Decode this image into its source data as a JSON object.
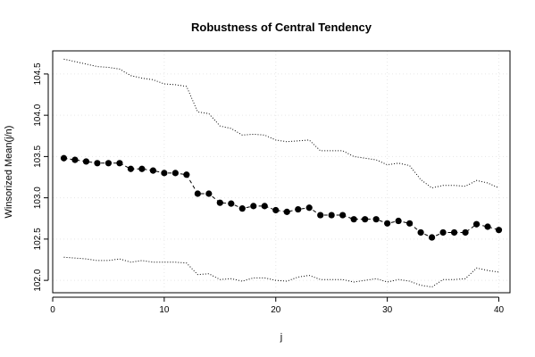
{
  "chart_data": {
    "type": "scatter",
    "title": "Robustness of Central Tendency",
    "xlabel": "j",
    "ylabel": "Winsorized Mean(j/n)",
    "xlim": [
      0,
      41
    ],
    "ylim": [
      101.85,
      104.78
    ],
    "xticks": [
      0,
      10,
      20,
      30,
      40
    ],
    "yticks": [
      "102.0",
      "102.5",
      "103.0",
      "103.5",
      "104.0",
      "104.5"
    ],
    "grid": true,
    "series": [
      {
        "style": "points-dashed",
        "x": [
          1,
          2,
          3,
          4,
          5,
          6,
          7,
          8,
          9,
          10,
          11,
          12,
          13,
          14,
          15,
          16,
          17,
          18,
          19,
          20,
          21,
          22,
          23,
          24,
          25,
          26,
          27,
          28,
          29,
          30,
          31,
          32,
          33,
          34,
          35,
          36,
          37,
          38,
          39,
          40
        ],
        "values": [
          103.48,
          103.46,
          103.44,
          103.42,
          103.42,
          103.42,
          103.35,
          103.35,
          103.33,
          103.3,
          103.3,
          103.28,
          103.05,
          103.05,
          102.94,
          102.93,
          102.87,
          102.9,
          102.9,
          102.85,
          102.83,
          102.86,
          102.88,
          102.79,
          102.79,
          102.79,
          102.74,
          102.74,
          102.74,
          102.69,
          102.72,
          102.69,
          102.58,
          102.52,
          102.58,
          102.58,
          102.58,
          102.68,
          102.65,
          102.61
        ]
      },
      {
        "style": "dotted-upper",
        "x": [
          1,
          2,
          3,
          4,
          5,
          6,
          7,
          8,
          9,
          10,
          11,
          12,
          13,
          14,
          15,
          16,
          17,
          18,
          19,
          20,
          21,
          22,
          23,
          24,
          25,
          26,
          27,
          28,
          29,
          30,
          31,
          32,
          33,
          34,
          35,
          36,
          37,
          38,
          39,
          40
        ],
        "values": [
          104.68,
          104.65,
          104.62,
          104.59,
          104.58,
          104.56,
          104.48,
          104.45,
          104.43,
          104.38,
          104.37,
          104.35,
          104.04,
          104.02,
          103.87,
          103.84,
          103.76,
          103.77,
          103.76,
          103.7,
          103.68,
          103.69,
          103.7,
          103.57,
          103.57,
          103.57,
          103.5,
          103.48,
          103.46,
          103.4,
          103.42,
          103.39,
          103.22,
          103.12,
          103.15,
          103.15,
          103.14,
          103.21,
          103.18,
          103.12
        ]
      },
      {
        "style": "dotted-lower",
        "x": [
          1,
          2,
          3,
          4,
          5,
          6,
          7,
          8,
          9,
          10,
          11,
          12,
          13,
          14,
          15,
          16,
          17,
          18,
          19,
          20,
          21,
          22,
          23,
          24,
          25,
          26,
          27,
          28,
          29,
          30,
          31,
          32,
          33,
          34,
          35,
          36,
          37,
          38,
          39,
          40
        ],
        "values": [
          102.28,
          102.27,
          102.26,
          102.24,
          102.24,
          102.26,
          102.22,
          102.24,
          102.22,
          102.22,
          102.22,
          102.21,
          102.07,
          102.08,
          102.01,
          102.02,
          101.99,
          102.03,
          102.03,
          102.0,
          101.99,
          102.04,
          102.06,
          102.01,
          102.01,
          102.01,
          101.98,
          102.0,
          102.02,
          101.98,
          102.01,
          101.99,
          101.94,
          101.92,
          102.01,
          102.01,
          102.02,
          102.15,
          102.12,
          102.1
        ]
      }
    ]
  }
}
